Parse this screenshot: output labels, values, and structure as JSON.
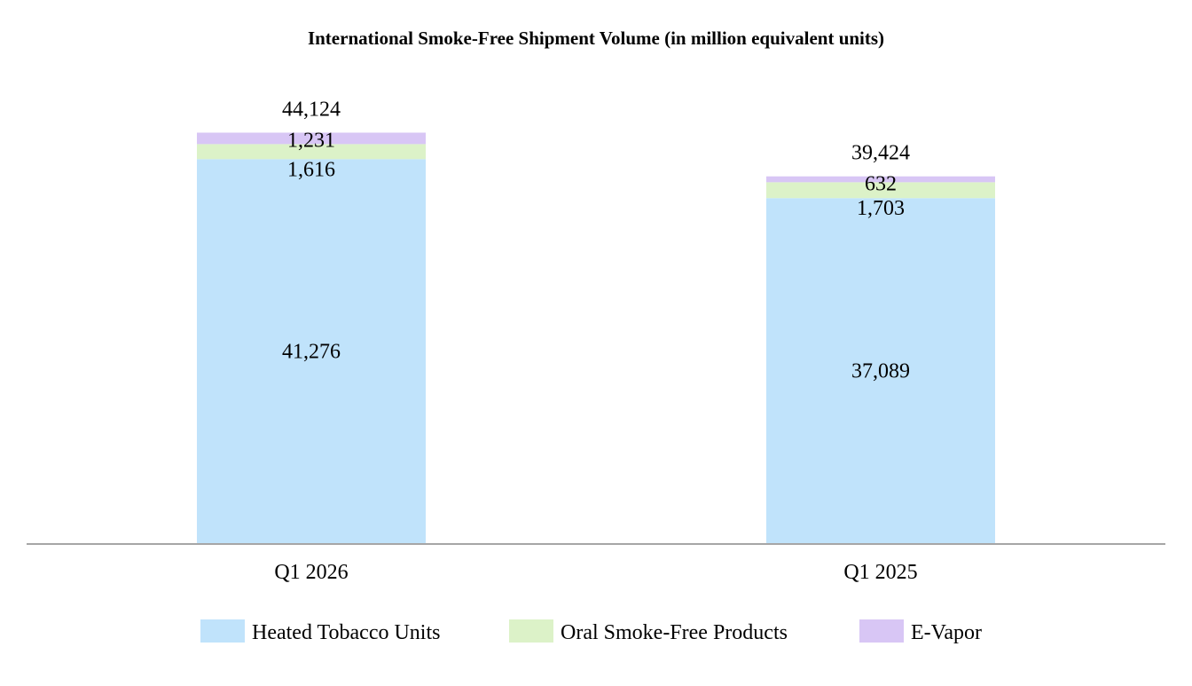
{
  "chart_data": {
    "type": "bar",
    "stacked": true,
    "title": "International Smoke-Free Shipment Volume (in million equivalent units)",
    "xlabel": "",
    "ylabel": "",
    "grid": false,
    "legend_position": "bottom",
    "categories": [
      "Q1 2026",
      "Q1 2025"
    ],
    "totals": [
      "44,124",
      "39,424"
    ],
    "series": [
      {
        "name": "Heated Tobacco Units",
        "color": "#c0e3fb",
        "values": [
          41276,
          37089
        ],
        "labels": [
          "41,276",
          "37,089"
        ]
      },
      {
        "name": "Oral Smoke-Free Products",
        "color": "#dcf2c8",
        "values": [
          1616,
          1703
        ],
        "labels": [
          "1,616",
          "1,703"
        ]
      },
      {
        "name": "E-Vapor",
        "color": "#d8c6f5",
        "values": [
          1231,
          632
        ],
        "labels": [
          "1,231",
          "632"
        ]
      }
    ],
    "ylim": [
      0,
      45600
    ]
  }
}
